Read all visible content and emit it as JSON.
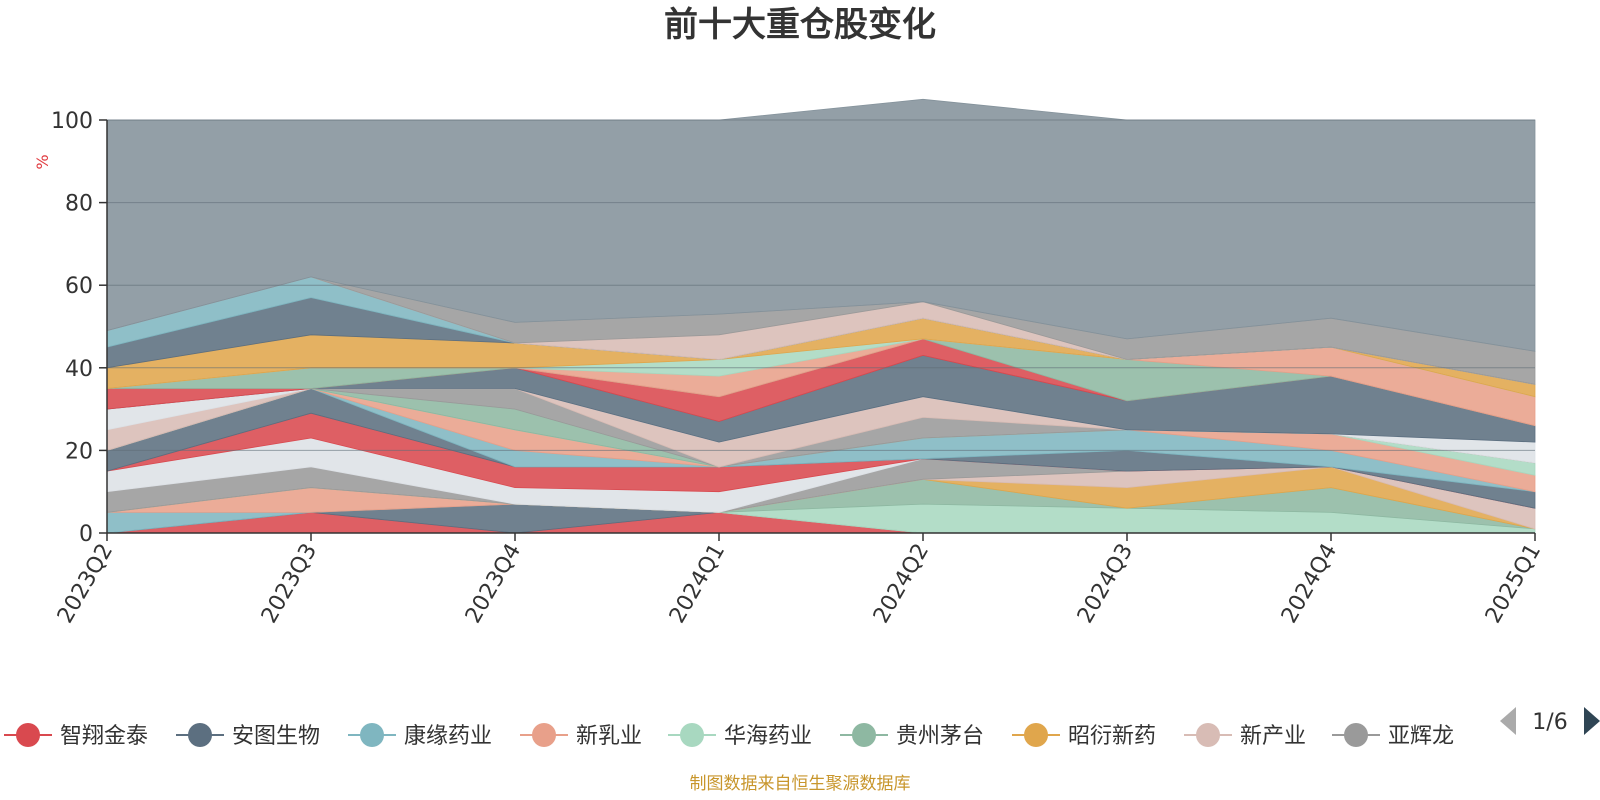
{
  "source_note": "制图数据来自恒生聚源数据库",
  "legend_page": "1/6",
  "chart_data": {
    "type": "area",
    "stacked": true,
    "title": "前十大重仓股变化",
    "unit": "%",
    "ylim": [
      0,
      100
    ],
    "yticks": [
      0,
      20,
      40,
      60,
      80,
      100
    ],
    "categories": [
      "2023Q2",
      "2023Q3",
      "2023Q4",
      "2024Q1",
      "2024Q2",
      "2024Q3",
      "2024Q4",
      "2025Q1"
    ],
    "grid": true,
    "legend_position": "bottom",
    "series": [
      {
        "name": "智翔金泰",
        "color": "#d9494f",
        "values": [
          0,
          5,
          0,
          5,
          0,
          0,
          0,
          0
        ]
      },
      {
        "name": "安图生物",
        "color": "#5c6f80",
        "values": [
          0,
          0,
          7,
          0,
          0,
          0,
          0,
          0
        ]
      },
      {
        "name": "康缘药业",
        "color": "#7fb6c0",
        "values": [
          5,
          0,
          0,
          0,
          0,
          0,
          0,
          0
        ]
      },
      {
        "name": "新乳业",
        "color": "#e8a08a",
        "values": [
          0,
          6,
          0,
          0,
          0,
          0,
          0,
          0
        ]
      },
      {
        "name": "华海药业",
        "color": "#a8d8c0",
        "values": [
          0,
          0,
          0,
          0,
          7,
          6,
          5,
          1
        ]
      },
      {
        "name": "贵州茅台",
        "color": "#8eb8a2",
        "values": [
          0,
          0,
          0,
          0,
          6,
          0,
          6,
          0
        ]
      },
      {
        "name": "昭衍新药",
        "color": "#e0a64c",
        "values": [
          0,
          0,
          0,
          0,
          0,
          5,
          5,
          0
        ]
      },
      {
        "name": "新产业",
        "color": "#d8bcb5",
        "values": [
          0,
          0,
          0,
          0,
          0,
          4,
          0,
          5
        ]
      },
      {
        "name": "亚辉龙",
        "color": "#9a9a9a",
        "values": [
          5,
          5,
          0,
          0,
          5,
          0,
          0,
          0
        ]
      },
      {
        "name": "",
        "color": "#dde1e6",
        "values": [
          5,
          7,
          4,
          5,
          0,
          0,
          0,
          0
        ]
      },
      {
        "name": "",
        "color": "#d9494f",
        "values": [
          0,
          6,
          5,
          6,
          0,
          0,
          0,
          0
        ]
      },
      {
        "name": "",
        "color": "#5c6f80",
        "values": [
          5,
          6,
          0,
          0,
          0,
          5,
          0,
          4
        ]
      },
      {
        "name": "",
        "color": "#7fb6c0",
        "values": [
          0,
          0,
          4,
          0,
          5,
          5,
          4,
          0
        ]
      },
      {
        "name": "",
        "color": "#e8a08a",
        "values": [
          0,
          0,
          5,
          0,
          0,
          0,
          4,
          4
        ]
      },
      {
        "name": "",
        "color": "#a8d8c0",
        "values": [
          0,
          0,
          0,
          0,
          0,
          0,
          0,
          3
        ]
      },
      {
        "name": "",
        "color": "#8eb8a2",
        "values": [
          0,
          0,
          5,
          0,
          0,
          0,
          0,
          0
        ]
      },
      {
        "name": "",
        "color": "#9a9a9a",
        "values": [
          0,
          0,
          5,
          0,
          5,
          0,
          0,
          0
        ]
      },
      {
        "name": "",
        "color": "#d8bcb5",
        "values": [
          5,
          0,
          0,
          6,
          5,
          0,
          0,
          0
        ]
      },
      {
        "name": "",
        "color": "#dde1e6",
        "values": [
          5,
          0,
          0,
          0,
          0,
          0,
          0,
          5
        ]
      },
      {
        "name": "",
        "color": "#5c6f80",
        "values": [
          0,
          0,
          5,
          5,
          10,
          7,
          14,
          4
        ]
      },
      {
        "name": "",
        "color": "#d9494f",
        "values": [
          5,
          0,
          0,
          6,
          4,
          0,
          0,
          0
        ]
      },
      {
        "name": "",
        "color": "#8eb8a2",
        "values": [
          0,
          5,
          0,
          0,
          0,
          10,
          0,
          0
        ]
      },
      {
        "name": "",
        "color": "#e8a08a",
        "values": [
          0,
          0,
          0,
          5,
          0,
          0,
          7,
          7
        ]
      },
      {
        "name": "",
        "color": "#a8d8c0",
        "values": [
          0,
          0,
          0,
          4,
          0,
          0,
          0,
          0
        ]
      },
      {
        "name": "",
        "color": "#e0a64c",
        "values": [
          5,
          8,
          6,
          0,
          5,
          0,
          0,
          3
        ]
      },
      {
        "name": "",
        "color": "#5c6f80",
        "values": [
          5,
          9,
          0,
          0,
          0,
          0,
          0,
          0
        ]
      },
      {
        "name": "",
        "color": "#7fb6c0",
        "values": [
          4,
          5,
          0,
          0,
          0,
          0,
          0,
          0
        ]
      },
      {
        "name": "",
        "color": "#d8bcb5",
        "values": [
          0,
          0,
          0,
          6,
          4,
          0,
          0,
          0
        ]
      },
      {
        "name": "",
        "color": "#9a9a9a",
        "values": [
          0,
          0,
          5,
          5,
          0,
          5,
          7,
          8
        ]
      },
      {
        "name": "",
        "color": "#84929b",
        "values": [
          51,
          38,
          49,
          47,
          49,
          53,
          48,
          56
        ]
      }
    ]
  }
}
